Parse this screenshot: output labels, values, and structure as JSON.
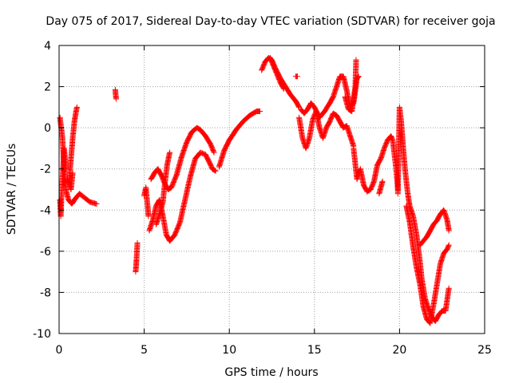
{
  "chart_data": {
    "type": "scatter",
    "title": "Day 075 of 2017, Sidereal Day-to-day VTEC variation (SDTVAR) for receiver goja",
    "xlabel": "GPS time / hours",
    "ylabel": "SDTVAR / TECUs",
    "xlim": [
      0,
      25
    ],
    "ylim": [
      -10,
      4
    ],
    "x_ticks": [
      0,
      5,
      10,
      15,
      20,
      25
    ],
    "x_tick_labels": [
      "0",
      "5",
      "10",
      "15",
      "20",
      "25"
    ],
    "y_ticks": [
      -10,
      -8,
      -6,
      -4,
      -2,
      0,
      2,
      4
    ],
    "y_tick_labels": [
      "-10",
      "-8",
      "-6",
      "-4",
      "-2",
      "0",
      "2",
      "4"
    ],
    "grid": true,
    "marker": "+",
    "marker_color": "#ff0000",
    "series": [
      {
        "name": "SDTVAR",
        "tracks": [
          [
            [
              0.05,
              0.5
            ],
            [
              0.2,
              -0.5
            ],
            [
              0.3,
              -2.0
            ],
            [
              0.4,
              -3.0
            ],
            [
              0.55,
              -3.5
            ],
            [
              0.75,
              -3.7
            ],
            [
              0.9,
              -3.5
            ],
            [
              1.0,
              -3.4
            ],
            [
              1.2,
              -3.2
            ],
            [
              1.5,
              -3.4
            ],
            [
              1.8,
              -3.6
            ],
            [
              2.2,
              -3.7
            ]
          ],
          [
            [
              0.05,
              -3.5
            ],
            [
              0.1,
              -4.3
            ],
            [
              0.15,
              -3.2
            ],
            [
              0.2,
              -2.5
            ],
            [
              0.3,
              -1.0
            ],
            [
              0.4,
              -2.0
            ]
          ],
          [
            [
              0.6,
              -2.5
            ],
            [
              0.7,
              -1.5
            ],
            [
              0.8,
              -0.5
            ],
            [
              0.9,
              0.3
            ],
            [
              1.0,
              0.8
            ],
            [
              1.05,
              1.0
            ]
          ],
          [
            [
              0.5,
              -2.5
            ],
            [
              0.7,
              -3.0
            ],
            [
              0.8,
              -2.2
            ]
          ],
          [
            [
              3.3,
              1.85
            ],
            [
              3.35,
              1.4
            ]
          ],
          [
            [
              4.5,
              -7.0
            ],
            [
              4.55,
              -6.4
            ],
            [
              4.6,
              -5.6
            ]
          ],
          [
            [
              5.0,
              -3.3
            ],
            [
              5.1,
              -2.9
            ],
            [
              5.2,
              -3.8
            ],
            [
              5.25,
              -4.3
            ]
          ],
          [
            [
              5.3,
              -5.0
            ],
            [
              5.5,
              -4.5
            ],
            [
              5.7,
              -3.8
            ],
            [
              5.9,
              -3.5
            ],
            [
              6.1,
              -4.3
            ],
            [
              6.3,
              -5.2
            ],
            [
              6.5,
              -5.5
            ],
            [
              6.8,
              -5.2
            ],
            [
              7.1,
              -4.6
            ],
            [
              7.4,
              -3.5
            ],
            [
              7.7,
              -2.4
            ],
            [
              8.0,
              -1.5
            ],
            [
              8.3,
              -1.2
            ],
            [
              8.6,
              -1.3
            ],
            [
              8.9,
              -1.8
            ],
            [
              9.0,
              -2.0
            ],
            [
              9.2,
              -2.1
            ]
          ],
          [
            [
              5.4,
              -2.5
            ],
            [
              5.6,
              -2.2
            ],
            [
              5.8,
              -2.0
            ],
            [
              6.0,
              -2.3
            ],
            [
              6.2,
              -2.7
            ],
            [
              6.4,
              -3.0
            ],
            [
              6.6,
              -2.9
            ],
            [
              6.9,
              -2.3
            ],
            [
              7.2,
              -1.4
            ],
            [
              7.5,
              -0.7
            ],
            [
              7.8,
              -0.2
            ],
            [
              8.1,
              0.0
            ],
            [
              8.3,
              -0.1
            ],
            [
              8.6,
              -0.4
            ],
            [
              8.9,
              -0.8
            ],
            [
              9.1,
              -1.2
            ]
          ],
          [
            [
              5.7,
              -4.7
            ],
            [
              5.9,
              -4.2
            ],
            [
              6.1,
              -3.6
            ],
            [
              6.2,
              -2.8
            ],
            [
              6.35,
              -1.8
            ],
            [
              6.5,
              -1.2
            ]
          ],
          [
            [
              9.4,
              -1.9
            ],
            [
              9.7,
              -1.1
            ],
            [
              10.0,
              -0.6
            ],
            [
              10.4,
              -0.1
            ],
            [
              10.8,
              0.3
            ],
            [
              11.2,
              0.6
            ],
            [
              11.6,
              0.8
            ],
            [
              11.8,
              0.8
            ]
          ],
          [
            [
              11.9,
              2.8
            ],
            [
              12.1,
              3.2
            ],
            [
              12.3,
              3.4
            ],
            [
              12.5,
              3.3
            ],
            [
              12.7,
              2.9
            ],
            [
              13.0,
              2.4
            ],
            [
              13.3,
              2.0
            ],
            [
              13.6,
              1.6
            ],
            [
              13.9,
              1.3
            ],
            [
              14.1,
              1.0
            ]
          ],
          [
            [
              12.4,
              3.4
            ],
            [
              12.6,
              3.0
            ],
            [
              12.8,
              2.6
            ],
            [
              13.0,
              2.2
            ],
            [
              13.2,
              1.9
            ]
          ],
          [
            [
              13.9,
              2.5
            ],
            [
              14.0,
              2.5
            ]
          ],
          [
            [
              14.1,
              0.5
            ],
            [
              14.3,
              -0.5
            ],
            [
              14.5,
              -1.0
            ],
            [
              14.7,
              -0.5
            ],
            [
              14.9,
              0.4
            ],
            [
              15.1,
              0.8
            ],
            [
              15.3,
              0.0
            ],
            [
              15.5,
              -0.5
            ],
            [
              15.7,
              0.0
            ],
            [
              15.9,
              0.3
            ],
            [
              16.1,
              0.7
            ],
            [
              16.3,
              0.6
            ],
            [
              16.5,
              0.3
            ],
            [
              16.7,
              0.0
            ],
            [
              16.9,
              0.1
            ],
            [
              17.1,
              -0.4
            ],
            [
              17.3,
              -0.9
            ]
          ],
          [
            [
              14.2,
              0.9
            ],
            [
              14.4,
              0.7
            ],
            [
              14.6,
              0.9
            ],
            [
              14.8,
              1.2
            ],
            [
              15.0,
              1.0
            ],
            [
              15.3,
              0.5
            ],
            [
              15.6,
              0.8
            ],
            [
              15.9,
              1.2
            ],
            [
              16.1,
              1.5
            ],
            [
              16.3,
              2.0
            ],
            [
              16.5,
              2.5
            ],
            [
              16.7,
              2.5
            ],
            [
              16.9,
              1.8
            ],
            [
              17.1,
              1.0
            ],
            [
              17.3,
              1.2
            ],
            [
              17.5,
              2.4
            ],
            [
              17.6,
              2.5
            ]
          ],
          [
            [
              16.8,
              1.5
            ],
            [
              17.0,
              0.9
            ],
            [
              17.2,
              0.8
            ],
            [
              17.4,
              2.0
            ],
            [
              17.45,
              3.3
            ]
          ],
          [
            [
              17.3,
              -1.0
            ],
            [
              17.5,
              -2.5
            ],
            [
              17.7,
              -2.0
            ],
            [
              17.9,
              -2.8
            ],
            [
              18.1,
              -3.1
            ],
            [
              18.3,
              -3.0
            ],
            [
              18.5,
              -2.6
            ],
            [
              18.7,
              -1.8
            ],
            [
              18.9,
              -1.5
            ],
            [
              19.1,
              -1.0
            ],
            [
              19.3,
              -0.6
            ],
            [
              19.5,
              -0.4
            ],
            [
              19.6,
              -0.6
            ],
            [
              19.8,
              -2.0
            ],
            [
              19.9,
              -3.0
            ]
          ],
          [
            [
              18.8,
              -3.2
            ],
            [
              19.0,
              -2.6
            ]
          ],
          [
            [
              19.9,
              -3.2
            ],
            [
              20.0,
              1.0
            ],
            [
              20.1,
              0.3
            ],
            [
              20.2,
              -0.8
            ],
            [
              20.3,
              -1.8
            ],
            [
              20.4,
              -2.6
            ],
            [
              20.5,
              -3.3
            ],
            [
              20.6,
              -3.8
            ],
            [
              20.8,
              -4.3
            ],
            [
              21.0,
              -5.2
            ],
            [
              21.2,
              -6.5
            ],
            [
              21.3,
              -7.3
            ],
            [
              21.5,
              -8.3
            ],
            [
              21.7,
              -8.8
            ],
            [
              21.9,
              -9.2
            ],
            [
              22.1,
              -9.4
            ],
            [
              22.3,
              -9.1
            ],
            [
              22.5,
              -8.9
            ],
            [
              22.7,
              -8.9
            ],
            [
              22.9,
              -7.8
            ]
          ],
          [
            [
              20.4,
              -3.8
            ],
            [
              20.6,
              -4.6
            ],
            [
              20.8,
              -5.8
            ],
            [
              21.0,
              -6.8
            ],
            [
              21.2,
              -7.6
            ],
            [
              21.4,
              -8.7
            ],
            [
              21.6,
              -9.3
            ],
            [
              21.8,
              -9.5
            ],
            [
              22.0,
              -8.6
            ],
            [
              22.2,
              -7.6
            ],
            [
              22.4,
              -6.6
            ],
            [
              22.6,
              -6.1
            ],
            [
              22.8,
              -5.9
            ],
            [
              22.9,
              -5.7
            ]
          ],
          [
            [
              21.2,
              -5.7
            ],
            [
              21.4,
              -5.5
            ],
            [
              21.6,
              -5.3
            ],
            [
              21.8,
              -5.0
            ],
            [
              22.0,
              -4.7
            ],
            [
              22.2,
              -4.5
            ],
            [
              22.4,
              -4.2
            ],
            [
              22.6,
              -4.0
            ],
            [
              22.8,
              -4.5
            ],
            [
              22.9,
              -5.0
            ]
          ]
        ]
      }
    ]
  }
}
